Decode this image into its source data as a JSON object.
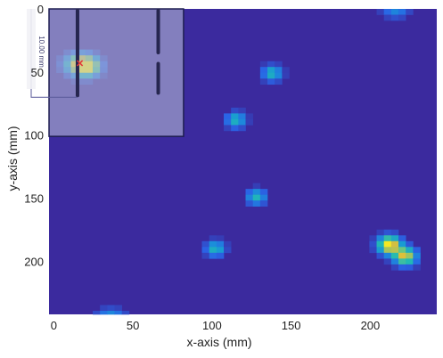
{
  "chart_data": {
    "type": "heatmap",
    "xlabel": "x-axis (mm)",
    "ylabel": "y-axis (mm)",
    "xlim": [
      -3,
      242
    ],
    "ylim": [
      0,
      242
    ],
    "y_reversed": true,
    "x_ticks": [
      0,
      50,
      100,
      150,
      200
    ],
    "y_ticks": [
      0,
      50,
      100,
      150,
      200
    ],
    "background_color": "#3b2a9e",
    "cell_mm": 4.6,
    "blobs": [
      {
        "x": 16.5,
        "y": 44,
        "peak": 0.9,
        "sx": 9,
        "sy": 8
      },
      {
        "x": 22,
        "y": 46,
        "peak": 0.75,
        "sx": 7,
        "sy": 7
      },
      {
        "x": 138,
        "y": 51,
        "peak": 0.5,
        "sx": 6,
        "sy": 6
      },
      {
        "x": 115,
        "y": 88,
        "peak": 0.5,
        "sx": 6,
        "sy": 6
      },
      {
        "x": 128,
        "y": 149,
        "peak": 0.5,
        "sx": 6,
        "sy": 6
      },
      {
        "x": 102,
        "y": 190,
        "peak": 0.5,
        "sx": 6,
        "sy": 6
      },
      {
        "x": 212,
        "y": 187,
        "peak": 1.0,
        "sx": 7,
        "sy": 7
      },
      {
        "x": 222,
        "y": 196,
        "peak": 0.85,
        "sx": 7,
        "sy": 7
      },
      {
        "x": 216,
        "y": 3,
        "peak": 0.3,
        "sx": 8,
        "sy": 4
      },
      {
        "x": 36,
        "y": 241,
        "peak": 0.3,
        "sx": 9,
        "sy": 4
      }
    ],
    "overlay": {
      "rect_x": [
        -3,
        82
      ],
      "rect_y": [
        0,
        101
      ],
      "fill": "#b9bdd6",
      "bars": [
        {
          "x": 15,
          "y1": 0,
          "y2": 70
        },
        {
          "x": 66,
          "y1": 0,
          "y2": 36
        },
        {
          "x": 66,
          "y1": 42,
          "y2": 68
        }
      ],
      "marker": {
        "x": 16.5,
        "y": 43
      }
    },
    "scale_label": "10.00 mm"
  }
}
